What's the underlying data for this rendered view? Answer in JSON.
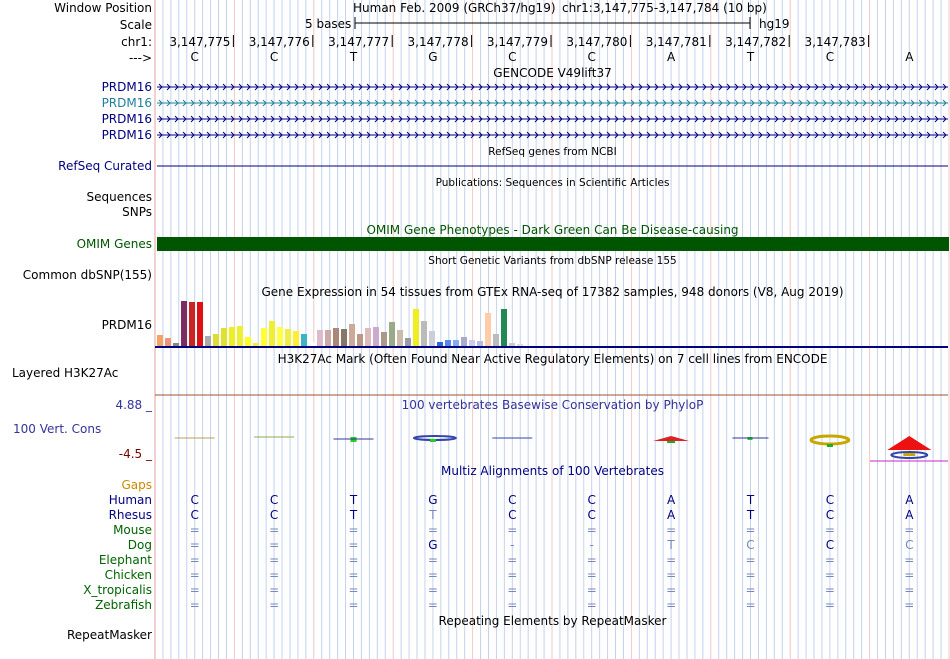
{
  "header": {
    "window_position_label": "Window Position",
    "assembly_text": "Human Feb. 2009 (GRCh37/hg19)",
    "position_text": "chr1:3,147,775-3,147,784 (10 bp)",
    "scale_label": "Scale",
    "scale_value": "5 bases",
    "scale_db": "hg19",
    "chrom_label": "chr1:",
    "strand_label": "--->"
  },
  "ruler": {
    "positions": [
      "3,147,775",
      "3,147,776",
      "3,147,777",
      "3,147,778",
      "3,147,779",
      "3,147,780",
      "3,147,781",
      "3,147,782",
      "3,147,783"
    ],
    "bases": [
      "C",
      "C",
      "T",
      "G",
      "C",
      "C",
      "A",
      "T",
      "C",
      "A"
    ]
  },
  "gencode": {
    "title": "GENCODE V49lift37",
    "labels": [
      "PRDM16",
      "PRDM16",
      "PRDM16",
      "PRDM16"
    ]
  },
  "refseq": {
    "title": "RefSeq genes from NCBI",
    "label": "RefSeq Curated"
  },
  "publications": {
    "title": "Publications: Sequences in Scientific Articles",
    "labels": [
      "Sequences",
      "SNPs"
    ]
  },
  "omim": {
    "title": "OMIM Gene Phenotypes - Dark Green Can Be Disease-causing",
    "label": "OMIM Genes"
  },
  "dbsnp": {
    "title": "Short Genetic Variants from dbSNP release 155",
    "label": "Common dbSNP(155)"
  },
  "gtex": {
    "title": "Gene Expression in 54 tissues from GTEx RNA-seq of 17382 samples, 948 donors (V8, Aug 2019)",
    "label": "PRDM16"
  },
  "h3k27ac": {
    "title": "H3K27Ac Mark (Often Found Near Active Regulatory Elements) on 7 cell lines from ENCODE",
    "label": "Layered H3K27Ac"
  },
  "phylop": {
    "title": "100 vertebrates Basewise Conservation by PhyloP",
    "label": "100 Vert. Cons",
    "max_label": "4.88 _",
    "min_label": "-4.5 _"
  },
  "multiz": {
    "title": "Multiz Alignments of 100 Vertebrates",
    "gaps_label": "Gaps",
    "species": [
      {
        "name": "Human",
        "bases": [
          "C",
          "C",
          "T",
          "G",
          "C",
          "C",
          "A",
          "T",
          "C",
          "A"
        ]
      },
      {
        "name": "Rhesus",
        "bases": [
          "C",
          "C",
          "T",
          "T",
          "C",
          "C",
          "A",
          "T",
          "C",
          "A"
        ]
      },
      {
        "name": "Mouse",
        "bases": [
          "=",
          "=",
          "=",
          "=",
          "=",
          "=",
          "=",
          "=",
          "=",
          "="
        ]
      },
      {
        "name": "Dog",
        "bases": [
          "=",
          "=",
          "=",
          "G",
          "-",
          "-",
          "T",
          "C",
          "C",
          "C"
        ]
      },
      {
        "name": "Elephant",
        "bases": [
          "=",
          "=",
          "=",
          "=",
          "=",
          "=",
          "=",
          "=",
          "=",
          "="
        ]
      },
      {
        "name": "Chicken",
        "bases": [
          "=",
          "=",
          "=",
          "=",
          "=",
          "=",
          "=",
          "=",
          "=",
          "="
        ]
      },
      {
        "name": "X_tropicalis",
        "bases": [
          "=",
          "=",
          "=",
          "=",
          "=",
          "=",
          "=",
          "=",
          "=",
          "="
        ]
      },
      {
        "name": "Zebrafish",
        "bases": [
          "=",
          "=",
          "=",
          "=",
          "=",
          "=",
          "=",
          "=",
          "=",
          "="
        ]
      }
    ]
  },
  "repeatmasker": {
    "title": "Repeating Elements by RepeatMasker",
    "label": "RepeatMasker"
  },
  "colors": {
    "navy": "#000080",
    "teal": "#1f7f9a",
    "omim_green": "#005500",
    "phylop_blue": "#333399",
    "phylop_red": "#770000",
    "gaps_orange": "#cc8800",
    "species_green": "#006400",
    "h3k27ac_brown": "#a0522d",
    "grid_blue": "#c4d2ee",
    "grid_pink": "#f0c8c8"
  }
}
